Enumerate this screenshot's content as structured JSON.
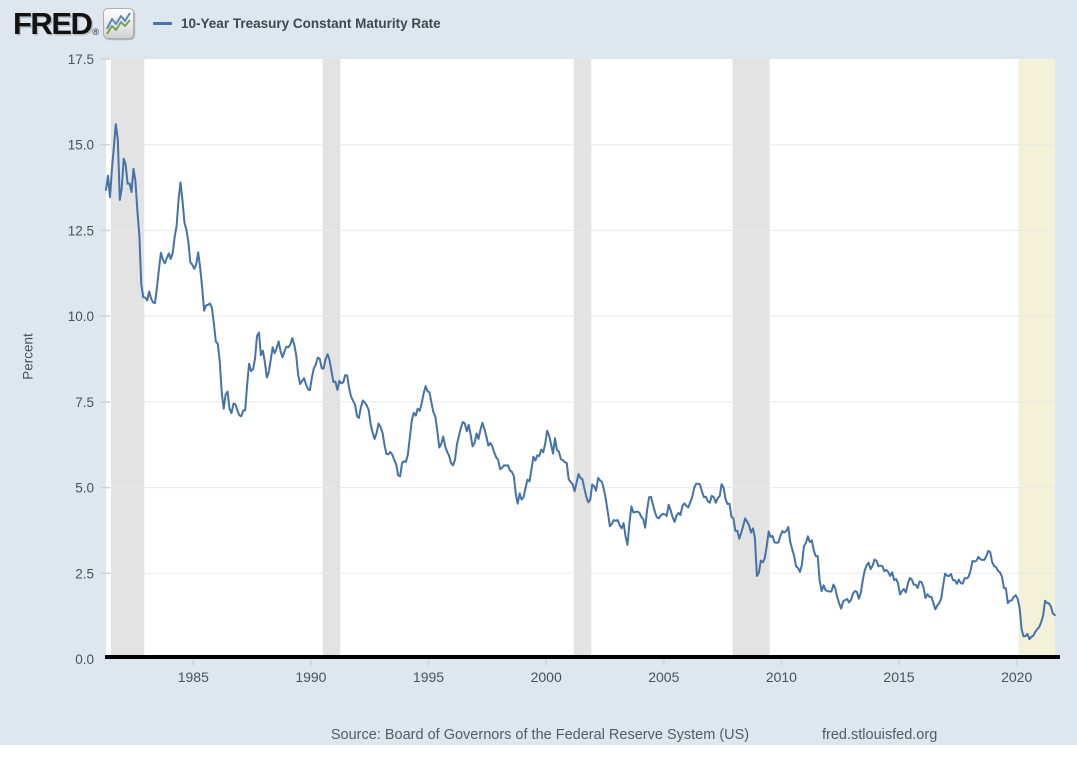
{
  "header": {
    "logo_text": "FRED",
    "registered_mark": "®",
    "legend": {
      "series_label": "10-Year Treasury Constant Maturity Rate"
    }
  },
  "footer": {
    "source": "Source: Board of Governors of the Federal Reserve System (US)",
    "site": "fred.stlouisfed.org"
  },
  "colors": {
    "page_background": "#dee6ef",
    "plot_background": "#ffffff",
    "series_line": "#4572a7",
    "recession_band": "#e3e3e3",
    "pending_band": "#f3f2d8",
    "gridline": "#e8e8e8",
    "axis_line": "#000000",
    "tick_mark": "#cdd3d9",
    "tick_text": "#49525c"
  },
  "chart_data": {
    "type": "line",
    "title": "10-Year Treasury Constant Maturity Rate",
    "ylabel": "Percent",
    "xlabel": "",
    "units": "Percent",
    "frequency": "monthly",
    "grid": "horizontal-only",
    "legend_position": "top-header",
    "ylim": [
      0,
      17.5
    ],
    "y_ticks": [
      "0.0",
      "2.5",
      "5.0",
      "7.5",
      "10.0",
      "12.5",
      "15.0",
      "17.5"
    ],
    "x_ticks": [
      1985,
      1990,
      1995,
      2000,
      2005,
      2010,
      2015,
      2020
    ],
    "x_range": [
      1981.29,
      2021.63
    ],
    "recession_bands": {
      "periods": [
        [
          1981.5,
          1982.92
        ],
        [
          1990.5,
          1991.25
        ],
        [
          2001.17,
          2001.92
        ],
        [
          2007.92,
          2009.5
        ]
      ]
    },
    "pending_recession_band": {
      "period": [
        2020.08,
        2021.63
      ]
    },
    "series": [
      {
        "name": "10-Year Treasury Constant Maturity Rate",
        "color": "#4572a7",
        "start": "1981-04",
        "end": "2021-08",
        "values": [
          13.68,
          14.1,
          13.47,
          14.28,
          14.94,
          15.6,
          15.15,
          13.39,
          13.72,
          14.59,
          14.43,
          13.86,
          13.87,
          13.62,
          14.3,
          13.95,
          13.06,
          12.34,
          10.91,
          10.55,
          10.54,
          10.46,
          10.72,
          10.51,
          10.4,
          10.38,
          10.85,
          11.38,
          11.85,
          11.65,
          11.54,
          11.69,
          11.83,
          11.67,
          11.84,
          12.32,
          12.63,
          13.41,
          13.9,
          13.36,
          12.72,
          12.52,
          12.16,
          11.57,
          11.5,
          11.38,
          11.51,
          11.86,
          11.43,
          10.85,
          10.16,
          10.31,
          10.33,
          10.37,
          10.24,
          9.78,
          9.26,
          9.19,
          8.7,
          7.78,
          7.3,
          7.71,
          7.8,
          7.3,
          7.17,
          7.45,
          7.43,
          7.25,
          7.11,
          7.08,
          7.25,
          7.25,
          8.02,
          8.61,
          8.4,
          8.45,
          8.76,
          9.42,
          9.52,
          8.86,
          8.99,
          8.67,
          8.21,
          8.37,
          8.72,
          9.09,
          8.92,
          9.06,
          9.26,
          8.98,
          8.8,
          8.96,
          9.11,
          9.09,
          9.17,
          9.36,
          9.18,
          8.86,
          8.28,
          8.02,
          8.11,
          8.19,
          8.01,
          7.87,
          7.84,
          8.21,
          8.47,
          8.59,
          8.79,
          8.76,
          8.48,
          8.47,
          8.75,
          8.89,
          8.72,
          8.39,
          8.08,
          8.09,
          7.85,
          8.11,
          8.04,
          8.07,
          8.28,
          8.27,
          7.9,
          7.65,
          7.53,
          7.42,
          7.09,
          7.03,
          7.34,
          7.54,
          7.48,
          7.39,
          7.26,
          6.84,
          6.59,
          6.42,
          6.59,
          6.87,
          6.77,
          6.6,
          6.26,
          5.98,
          5.97,
          6.04,
          5.96,
          5.81,
          5.68,
          5.36,
          5.33,
          5.72,
          5.77,
          5.75,
          5.97,
          6.48,
          6.97,
          7.18,
          7.1,
          7.3,
          7.24,
          7.46,
          7.74,
          7.96,
          7.81,
          7.78,
          7.47,
          7.2,
          7.06,
          6.63,
          6.17,
          6.28,
          6.49,
          6.2,
          6.04,
          5.93,
          5.71,
          5.65,
          5.81,
          6.27,
          6.51,
          6.74,
          6.91,
          6.87,
          6.64,
          6.83,
          6.53,
          6.2,
          6.3,
          6.58,
          6.42,
          6.69,
          6.89,
          6.71,
          6.49,
          6.22,
          6.3,
          6.21,
          6.03,
          5.88,
          5.81,
          5.54,
          5.57,
          5.65,
          5.64,
          5.65,
          5.5,
          5.46,
          5.34,
          4.81,
          4.53,
          4.83,
          4.65,
          4.72,
          5.0,
          5.23,
          5.18,
          5.54,
          5.9,
          5.79,
          5.94,
          5.92,
          6.11,
          6.03,
          6.28,
          6.66,
          6.52,
          6.26,
          5.99,
          6.44,
          6.1,
          6.05,
          5.83,
          5.8,
          5.74,
          5.72,
          5.24,
          5.16,
          5.1,
          4.89,
          5.14,
          5.39,
          5.28,
          5.24,
          4.97,
          4.73,
          4.57,
          4.65,
          5.09,
          5.04,
          4.91,
          5.28,
          5.21,
          5.16,
          4.93,
          4.65,
          4.26,
          3.87,
          3.94,
          4.05,
          4.03,
          4.05,
          3.9,
          3.81,
          3.96,
          3.57,
          3.33,
          3.98,
          4.45,
          4.27,
          4.29,
          4.3,
          4.27,
          4.15,
          4.08,
          3.83,
          4.35,
          4.72,
          4.73,
          4.5,
          4.28,
          4.13,
          4.1,
          4.19,
          4.23,
          4.22,
          4.17,
          4.5,
          4.34,
          4.14,
          4.0,
          4.18,
          4.26,
          4.2,
          4.46,
          4.54,
          4.47,
          4.42,
          4.57,
          4.72,
          4.99,
          5.11,
          5.11,
          5.09,
          4.88,
          4.72,
          4.73,
          4.6,
          4.56,
          4.76,
          4.72,
          4.56,
          4.69,
          4.75,
          5.1,
          5.0,
          4.67,
          4.52,
          4.53,
          4.15,
          4.1,
          3.74,
          3.74,
          3.51,
          3.68,
          3.88,
          4.1,
          4.01,
          3.89,
          3.69,
          3.81,
          3.53,
          2.42,
          2.52,
          2.87,
          2.82,
          2.93,
          3.29,
          3.72,
          3.56,
          3.59,
          3.4,
          3.39,
          3.4,
          3.59,
          3.73,
          3.69,
          3.73,
          3.85,
          3.42,
          3.2,
          3.01,
          2.7,
          2.65,
          2.54,
          2.76,
          3.29,
          3.39,
          3.58,
          3.41,
          3.46,
          3.17,
          3.0,
          3.0,
          2.3,
          1.98,
          2.15,
          2.01,
          1.98,
          1.97,
          1.97,
          2.17,
          2.05,
          1.8,
          1.62,
          1.47,
          1.68,
          1.72,
          1.75,
          1.65,
          1.72,
          1.91,
          1.98,
          1.96,
          1.76,
          1.93,
          2.3,
          2.58,
          2.74,
          2.81,
          2.62,
          2.72,
          2.9,
          2.86,
          2.71,
          2.72,
          2.71,
          2.56,
          2.6,
          2.54,
          2.42,
          2.53,
          2.3,
          2.33,
          2.21,
          1.88,
          1.98,
          2.04,
          1.94,
          2.2,
          2.36,
          2.32,
          2.17,
          2.17,
          2.07,
          2.26,
          2.24,
          2.09,
          1.78,
          1.89,
          1.81,
          1.81,
          1.64,
          1.45,
          1.56,
          1.63,
          1.76,
          2.14,
          2.49,
          2.43,
          2.42,
          2.48,
          2.3,
          2.3,
          2.19,
          2.32,
          2.21,
          2.2,
          2.36,
          2.35,
          2.4,
          2.58,
          2.86,
          2.84,
          2.87,
          2.98,
          2.91,
          2.89,
          2.89,
          3.0,
          3.15,
          3.12,
          2.83,
          2.71,
          2.68,
          2.57,
          2.53,
          2.4,
          2.07,
          2.06,
          1.63,
          1.7,
          1.71,
          1.81,
          1.86,
          1.76,
          1.5,
          0.87,
          0.66,
          0.67,
          0.73,
          0.58,
          0.65,
          0.68,
          0.79,
          0.87,
          0.93,
          1.08,
          1.26,
          1.7,
          1.64,
          1.62,
          1.52,
          1.32,
          1.28
        ]
      }
    ]
  }
}
